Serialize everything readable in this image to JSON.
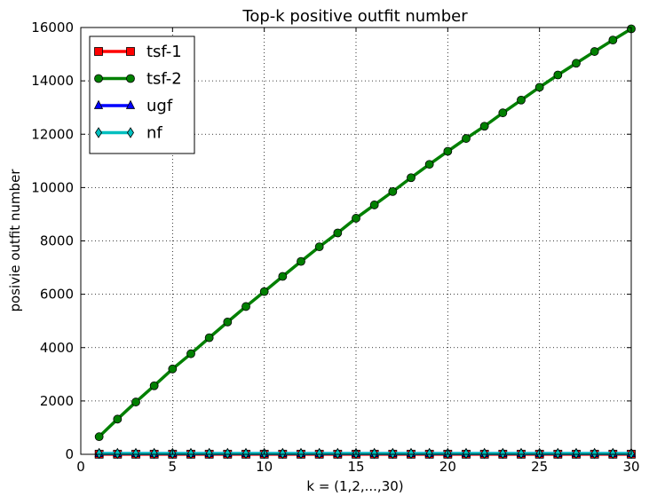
{
  "chart_data": {
    "type": "line",
    "title": "Top-k positive outfit number",
    "xlabel": "k = (1,2,...,30)",
    "ylabel": "posivie outfit number",
    "xlim": [
      0,
      30
    ],
    "ylim": [
      0,
      16000
    ],
    "xticks": [
      0,
      5,
      10,
      15,
      20,
      25,
      30
    ],
    "yticks": [
      0,
      2000,
      4000,
      6000,
      8000,
      10000,
      12000,
      14000,
      16000
    ],
    "grid": true,
    "legend_position": "top-left",
    "x": [
      1,
      2,
      3,
      4,
      5,
      6,
      7,
      8,
      9,
      10,
      11,
      12,
      13,
      14,
      15,
      16,
      17,
      18,
      19,
      20,
      21,
      22,
      23,
      24,
      25,
      26,
      27,
      28,
      29,
      30
    ],
    "series": [
      {
        "name": "tsf-1",
        "color": "#ff0000",
        "marker": "square",
        "values": [
          5,
          5,
          5,
          5,
          5,
          5,
          5,
          5,
          5,
          5,
          5,
          5,
          5,
          5,
          5,
          5,
          5,
          5,
          5,
          5,
          5,
          5,
          5,
          5,
          5,
          5,
          5,
          5,
          5,
          5
        ]
      },
      {
        "name": "tsf-2",
        "color": "#008000",
        "marker": "circle",
        "values": [
          660,
          1320,
          1960,
          2570,
          3200,
          3770,
          4370,
          4960,
          5540,
          6100,
          6670,
          7230,
          7780,
          8300,
          8850,
          9350,
          9850,
          10370,
          10870,
          11360,
          11840,
          12300,
          12800,
          13280,
          13760,
          14220,
          14660,
          15100,
          15530,
          15950
        ]
      },
      {
        "name": "ugf",
        "color": "#0000ff",
        "marker": "triangle",
        "values": [
          30,
          30,
          30,
          30,
          30,
          30,
          30,
          30,
          30,
          30,
          30,
          30,
          30,
          30,
          30,
          30,
          30,
          30,
          30,
          30,
          30,
          30,
          30,
          30,
          30,
          30,
          30,
          30,
          30,
          30
        ]
      },
      {
        "name": "nf",
        "color": "#00bfbf",
        "marker": "diamond",
        "values": [
          30,
          30,
          30,
          30,
          30,
          30,
          30,
          30,
          30,
          30,
          30,
          30,
          30,
          30,
          30,
          30,
          30,
          30,
          30,
          30,
          30,
          30,
          30,
          30,
          30,
          30,
          30,
          30,
          30,
          30
        ]
      }
    ]
  }
}
